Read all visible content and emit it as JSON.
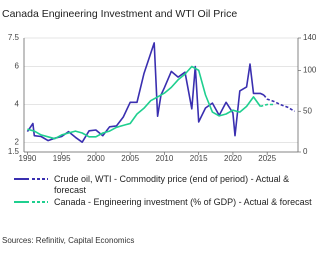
{
  "chart_data": {
    "type": "line",
    "title": "Canada Engineering Investment and WTI Oil Price",
    "xlim": [
      1989.5,
      2029.5
    ],
    "xticks": [
      1990,
      1995,
      2000,
      2005,
      2010,
      2015,
      2020,
      2025
    ],
    "ylim": [
      1.5,
      7.5
    ],
    "yticks": [
      1.5,
      2,
      4,
      6,
      7.5
    ],
    "y2lim": [
      0,
      140
    ],
    "y2ticks": [
      0,
      50,
      100,
      140
    ],
    "grid": true,
    "series": [
      {
        "name": "Crude oil, WTI - Commodity price (end of period) - Actual & forecast",
        "color": "#3a2fb0",
        "axis": "y2",
        "x": [
          1990,
          1990.8,
          1991,
          1992,
          1993,
          1994,
          1995,
          1996,
          1997,
          1998,
          1999,
          2000,
          2001,
          2002,
          2003,
          2004,
          2005,
          2006,
          2007,
          2008.5,
          2009,
          2009.5,
          2010,
          2011,
          2012,
          2013,
          2014,
          2014.5,
          2015,
          2016,
          2017,
          2018,
          2019,
          2020,
          2020.3,
          2021,
          2022,
          2022.5,
          2023,
          2024,
          2024.5
        ],
        "values": [
          25,
          35,
          20,
          19,
          14,
          17,
          19,
          25,
          18,
          12,
          26,
          27,
          20,
          31,
          32,
          43,
          61,
          61,
          96,
          134,
          44,
          70,
          79,
          99,
          92,
          98,
          53,
          105,
          37,
          54,
          60,
          45,
          61,
          48,
          20,
          75,
          80,
          108,
          72,
          72,
          70
        ],
        "forecast": {
          "x": [
            2024.5,
            2025,
            2026,
            2027,
            2028,
            2029
          ],
          "values": [
            70,
            65,
            62,
            58,
            55,
            50
          ]
        }
      },
      {
        "name": "Canada - Engineering investment (% of GDP) - Actual & forecast",
        "color": "#1fcf8f",
        "axis": "y",
        "x": [
          1990,
          1991,
          1992,
          1993,
          1994,
          1995,
          1996,
          1997,
          1998,
          1999,
          2000,
          2001,
          2002,
          2003,
          2004,
          2005,
          2006,
          2007,
          2008,
          2009,
          2010,
          2011,
          2012,
          2013,
          2014,
          2015,
          2016,
          2017,
          2018,
          2019,
          2020,
          2021,
          2022,
          2023,
          2024
        ],
        "values": [
          2.7,
          2.6,
          2.4,
          2.3,
          2.2,
          2.4,
          2.5,
          2.6,
          2.5,
          2.3,
          2.3,
          2.5,
          2.6,
          2.8,
          2.9,
          3.0,
          3.5,
          3.8,
          4.2,
          4.4,
          4.6,
          4.9,
          5.3,
          5.6,
          6.0,
          5.8,
          4.5,
          3.6,
          3.4,
          3.5,
          3.7,
          3.6,
          3.9,
          4.4,
          3.9
        ],
        "forecast": {
          "x": [
            2024,
            2025,
            2026
          ],
          "values": [
            3.9,
            4.0,
            4.0
          ]
        }
      }
    ],
    "source": "Sources: Refinitiv, Capital Economics"
  }
}
